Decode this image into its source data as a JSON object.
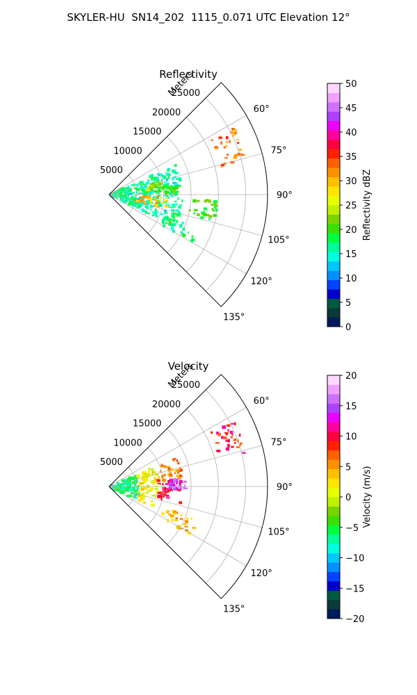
{
  "suptitle": "SKYLER-HU  SN14_202  1115_0.071 UTC Elevation 12°",
  "chart_data": [
    {
      "type": "heatmap",
      "title": "Reflectivity",
      "range_axis_label": "Meters",
      "range_ticks": [
        5000,
        10000,
        15000,
        20000,
        25000
      ],
      "range_tick_labels": [
        "5000",
        "10000",
        "15000",
        "20000",
        "25000"
      ],
      "range_max": 29000,
      "azimuth_range_deg": [
        45,
        135
      ],
      "azimuth_ticks_deg": [
        60,
        75,
        90,
        105,
        120,
        135
      ],
      "azimuth_tick_labels": [
        "60°",
        "75°",
        "90°",
        "105°",
        "120°",
        "135°"
      ],
      "grid": true,
      "colorbar": {
        "label": "Reflectivity dBZ",
        "range": [
          0,
          50
        ],
        "ticks": [
          0,
          5,
          10,
          15,
          20,
          25,
          30,
          35,
          40,
          45,
          50
        ],
        "tick_labels": [
          "0",
          "5",
          "10",
          "15",
          "20",
          "25",
          "30",
          "35",
          "40",
          "45",
          "50"
        ],
        "colormap": [
          "#001a5c",
          "#0a3a3a",
          "#005a40",
          "#0000c8",
          "#0044ff",
          "#0090ff",
          "#00c8ff",
          "#00ffe0",
          "#00ff9a",
          "#00ff40",
          "#3ce000",
          "#7ad400",
          "#c0f000",
          "#e8ff00",
          "#ffe600",
          "#ffc000",
          "#ff9000",
          "#ff6000",
          "#ff2000",
          "#ff0040",
          "#ff00a0",
          "#ee00ff",
          "#b040ff",
          "#d070ff",
          "#f0a0ff",
          "#ffd8ff"
        ]
      },
      "echo_cells": [
        {
          "range_m": [
            400,
            13500
          ],
          "azimuth_deg": [
            66,
            117
          ],
          "value_dbz": 16
        },
        {
          "range_m": [
            5000,
            11000
          ],
          "azimuth_deg": [
            92,
            104
          ],
          "value_dbz": 30
        },
        {
          "range_m": [
            7000,
            10000
          ],
          "azimuth_deg": [
            76,
            87
          ],
          "value_dbz": 22
        },
        {
          "range_m": [
            9000,
            13000
          ],
          "azimuth_deg": [
            82,
            90
          ],
          "value_dbz": 20
        },
        {
          "range_m": [
            11000,
            17500
          ],
          "azimuth_deg": [
            111,
            121
          ],
          "value_dbz": 17
        },
        {
          "range_m": [
            21000,
            26000
          ],
          "azimuth_deg": [
            62,
            76
          ],
          "value_dbz": 32
        },
        {
          "range_m": [
            15000,
            20000
          ],
          "azimuth_deg": [
            93,
            104
          ],
          "value_dbz": 20
        }
      ]
    },
    {
      "type": "heatmap",
      "title": "Velocity",
      "range_axis_label": "Meters",
      "range_ticks": [
        5000,
        10000,
        15000,
        20000,
        25000
      ],
      "range_tick_labels": [
        "5000",
        "10000",
        "15000",
        "20000",
        "25000"
      ],
      "range_max": 29000,
      "azimuth_range_deg": [
        45,
        135
      ],
      "azimuth_ticks_deg": [
        60,
        75,
        90,
        105,
        120,
        135
      ],
      "azimuth_tick_labels": [
        "60°",
        "75°",
        "90°",
        "105°",
        "120°",
        "135°"
      ],
      "grid": true,
      "colorbar": {
        "label": "Velocity (m/s)",
        "range": [
          -20,
          20
        ],
        "ticks": [
          -20,
          -15,
          -10,
          -5,
          0,
          5,
          10,
          15,
          20
        ],
        "tick_labels": [
          "−20",
          "−15",
          "−10",
          "−5",
          "0",
          "5",
          "10",
          "15",
          "20"
        ],
        "colormap": [
          "#001a5c",
          "#0a3a3a",
          "#005a40",
          "#0000c8",
          "#0044ff",
          "#0090ff",
          "#00c8ff",
          "#00ffe0",
          "#00ff9a",
          "#00ff40",
          "#3ce000",
          "#7ad400",
          "#c0f000",
          "#e8ff00",
          "#ffe600",
          "#ffc000",
          "#ff9000",
          "#ff6000",
          "#ff2000",
          "#ff0040",
          "#ff00a0",
          "#ee00ff",
          "#b040ff",
          "#d070ff",
          "#f0a0ff",
          "#ffd8ff"
        ]
      },
      "echo_cells": [
        {
          "range_m": [
            400,
            5500
          ],
          "azimuth_deg": [
            66,
            117
          ],
          "value_ms": -6
        },
        {
          "range_m": [
            5500,
            9000
          ],
          "azimuth_deg": [
            66,
            117
          ],
          "value_ms": 1
        },
        {
          "range_m": [
            9000,
            13500
          ],
          "azimuth_deg": [
            66,
            85
          ],
          "value_ms": 6
        },
        {
          "range_m": [
            9000,
            13500
          ],
          "azimuth_deg": [
            85,
            104
          ],
          "value_ms": 10
        },
        {
          "range_m": [
            11000,
            14000
          ],
          "azimuth_deg": [
            84,
            92
          ],
          "value_ms": 15
        },
        {
          "range_m": [
            11000,
            17500
          ],
          "azimuth_deg": [
            111,
            121
          ],
          "value_ms": 4
        },
        {
          "range_m": [
            21000,
            26000
          ],
          "azimuth_deg": [
            62,
            76
          ],
          "value_ms": 9
        }
      ]
    }
  ]
}
